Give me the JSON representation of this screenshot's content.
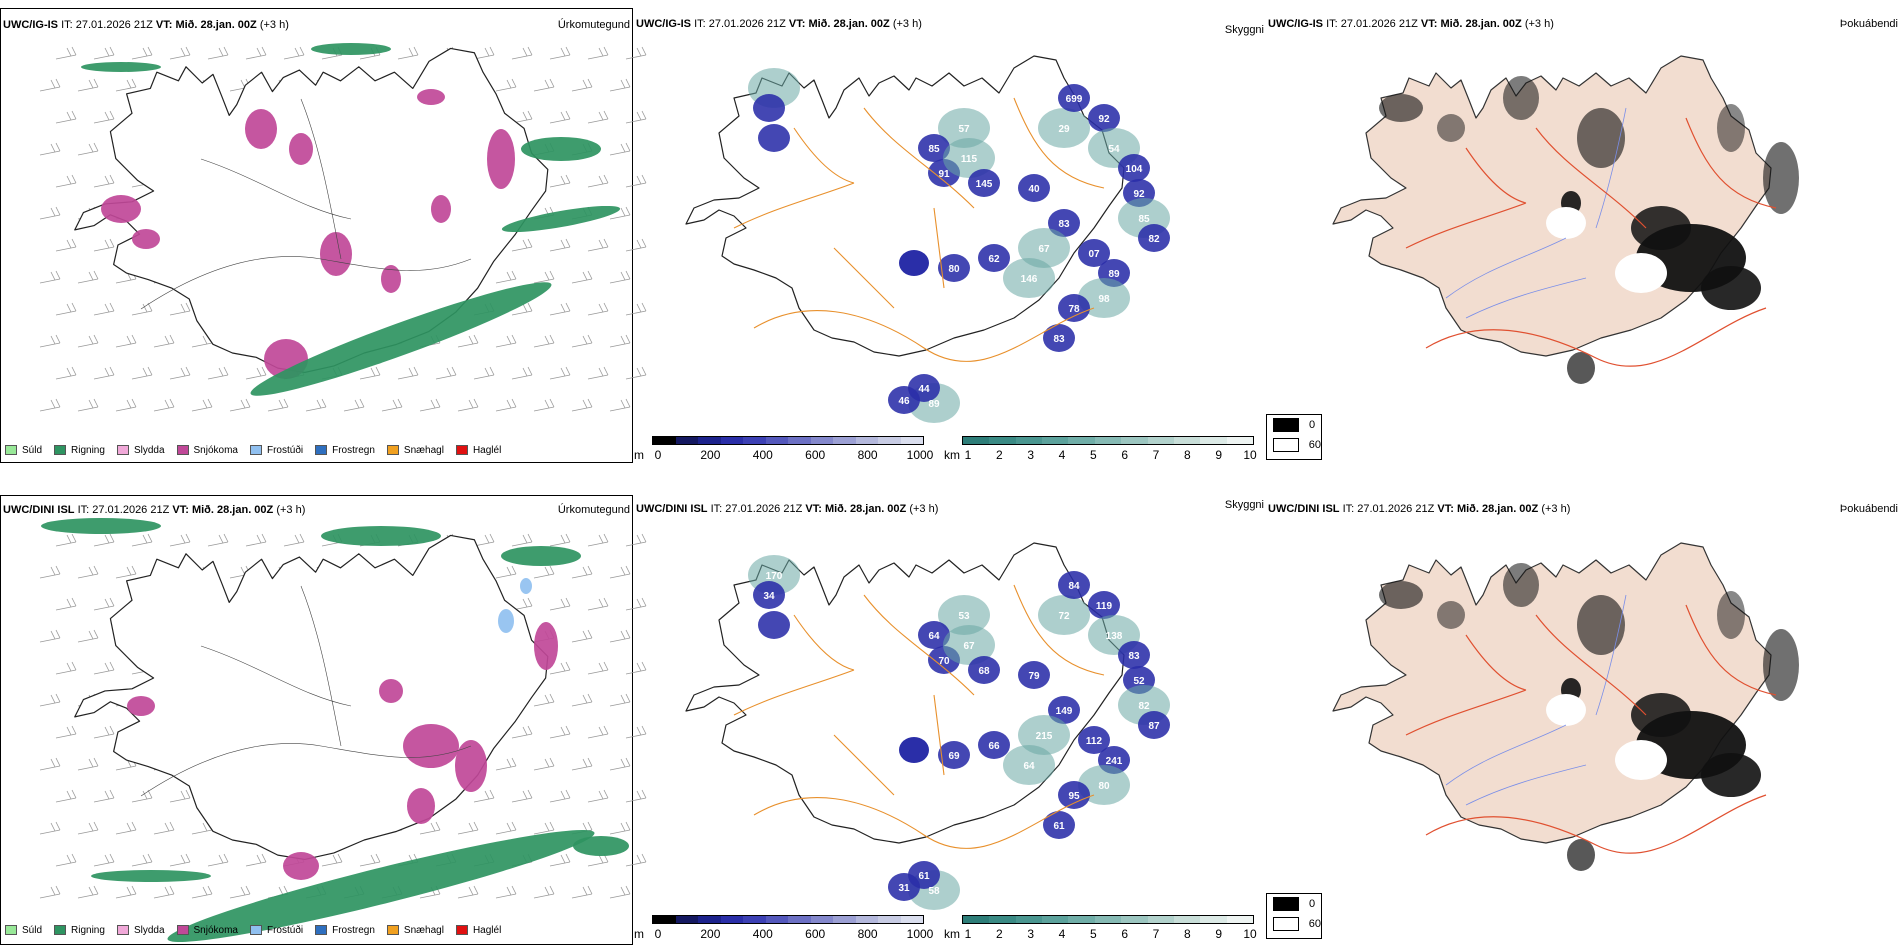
{
  "rows": [
    {
      "model": "UWC/IG-IS",
      "it_label": "IT:",
      "it_value": "27.01.2026 21Z",
      "vt_label": "VT:",
      "vt_value": "Mið. 28.jan. 00Z",
      "lead": "(+3 h)",
      "precip_title": "Úrkomutegund",
      "vis_title": "Skyggni",
      "fog_title": "Þokuábendi",
      "vis_labels": [
        "57",
        "85",
        "91",
        "115",
        "145",
        "40",
        "29",
        "699",
        "92",
        "54",
        "104",
        "92",
        "85",
        "82",
        "83",
        "67",
        "07",
        "89",
        "98",
        "78",
        "83",
        "146",
        "62",
        "80",
        "89",
        "44",
        "46"
      ]
    },
    {
      "model": "UWC/DINI ISL",
      "it_label": "IT:",
      "it_value": "27.01.2026 21Z",
      "vt_label": "VT:",
      "vt_value": "Mið. 28.jan. 00Z",
      "lead": "(+3 h)",
      "precip_title": "Úrkomutegund",
      "vis_title": "Skyggni",
      "fog_title": "Þokuábendi",
      "vis_labels": [
        "53",
        "64",
        "70",
        "67",
        "68",
        "79",
        "72",
        "84",
        "119",
        "138",
        "83",
        "52",
        "82",
        "87",
        "149",
        "215",
        "112",
        "241",
        "80",
        "95",
        "61",
        "64",
        "66",
        "69",
        "58",
        "61",
        "31",
        "170",
        "34"
      ]
    }
  ],
  "precip_legend": [
    {
      "label": "Súld",
      "color": "#98e898"
    },
    {
      "label": "Rigning",
      "color": "#2e9461"
    },
    {
      "label": "Slydda",
      "color": "#f0a8d8"
    },
    {
      "label": "Snjókoma",
      "color": "#c04898"
    },
    {
      "label": "Frostúði",
      "color": "#90c0f0"
    },
    {
      "label": "Frostregn",
      "color": "#2e6fbf"
    },
    {
      "label": "Snæhagl",
      "color": "#f0a020"
    },
    {
      "label": "Haglél",
      "color": "#e01010"
    }
  ],
  "m_scale": {
    "unit": "m",
    "ticks": [
      "0",
      "200",
      "400",
      "600",
      "800",
      "1000"
    ],
    "colors": [
      "#000000",
      "#141860",
      "#1c228c",
      "#2a2ea8",
      "#3c40b4",
      "#5458bc",
      "#6c70c4",
      "#8488cc",
      "#9ca0d4",
      "#b4b8dc",
      "#c8cce4",
      "#dadeee"
    ]
  },
  "km_scale": {
    "unit": "km",
    "ticks": [
      "1",
      "2",
      "3",
      "4",
      "5",
      "6",
      "7",
      "8",
      "9",
      "10"
    ],
    "colors": [
      "#2d7d78",
      "#3a8a84",
      "#4a9690",
      "#5ca29c",
      "#70aea8",
      "#86bab4",
      "#9cc6c0",
      "#b2d2cc",
      "#c8ded8",
      "#dceae6",
      "#eef4f2"
    ]
  },
  "fog_legend": [
    {
      "label": "0",
      "color": "#000000"
    },
    {
      "label": "60",
      "color": "#ffffff"
    }
  ],
  "colors": {
    "roads": "#e8902c",
    "fog_land": "#f2ddd0",
    "fog_roads": "#e05030",
    "rivers": "#7a8ee8"
  }
}
